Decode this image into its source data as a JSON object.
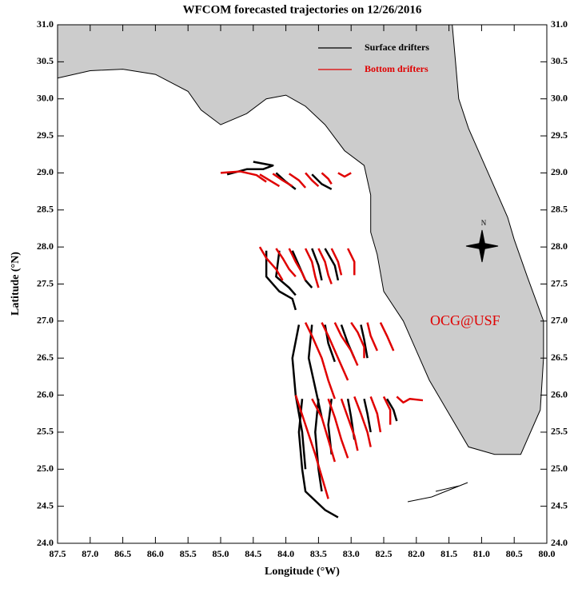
{
  "chart_data": {
    "type": "map",
    "title": "WFCOM forecasted trajectories on 12/26/2016",
    "xlabel": "Longitude (°W)",
    "ylabel": "Latitude (°N)",
    "xlim": [
      87.5,
      80.0
    ],
    "ylim": [
      24.0,
      31.0
    ],
    "xticks": [
      87.5,
      {
        "value": 87,
        "label": "87.0"
      },
      86.5,
      {
        "value": 86,
        "label": "86.0"
      },
      85.5,
      {
        "value": 85,
        "label": "85.0"
      },
      84.5,
      {
        "value": 84,
        "label": "84.0"
      },
      83.5,
      {
        "value": 83,
        "label": "83.0"
      },
      82.5,
      {
        "value": 82,
        "label": "82.0"
      },
      81.5,
      {
        "value": 81,
        "label": "81.0"
      },
      80.5,
      {
        "value": 80,
        "label": "80.0"
      }
    ],
    "yticks": [
      {
        "value": 24,
        "label": "24.0"
      },
      24.5,
      {
        "value": 25,
        "label": "25.0"
      },
      25.5,
      {
        "value": 26,
        "label": "26.0"
      },
      26.5,
      {
        "value": 27,
        "label": "27.0"
      },
      27.5,
      {
        "value": 28,
        "label": "28.0"
      },
      28.5,
      {
        "value": 29,
        "label": "29.0"
      },
      29.5,
      {
        "value": 30,
        "label": "30.0"
      },
      30.5,
      {
        "value": 31,
        "label": "31.0"
      }
    ],
    "legend": "top-right",
    "annotation": "OCG@USF",
    "compass_label": "N",
    "series": [
      {
        "name": "Surface drifters",
        "color": "#000000",
        "tracks": [
          {
            "x": [
              84.5,
              84.2,
              84.35,
              84.6,
              84.9
            ],
            "y": [
              29.15,
              29.1,
              29.05,
              29.05,
              28.98
            ]
          },
          {
            "x": [
              84.15,
              84.0,
              83.85
            ],
            "y": [
              29.0,
              28.88,
              28.78
            ]
          },
          {
            "x": [
              83.6,
              83.45,
              83.3
            ],
            "y": [
              28.98,
              28.85,
              28.78
            ]
          },
          {
            "x": [
              84.3,
              84.3,
              84.1,
              83.9,
              83.85
            ],
            "y": [
              27.95,
              27.6,
              27.4,
              27.3,
              27.15
            ]
          },
          {
            "x": [
              84.1,
              84.15,
              83.95,
              83.85
            ],
            "y": [
              27.95,
              27.6,
              27.45,
              27.35
            ]
          },
          {
            "x": [
              83.9,
              83.8,
              83.7,
              83.6
            ],
            "y": [
              27.95,
              27.75,
              27.55,
              27.45
            ]
          },
          {
            "x": [
              83.6,
              83.5,
              83.45
            ],
            "y": [
              27.98,
              27.75,
              27.55
            ]
          },
          {
            "x": [
              83.4,
              83.25,
              83.2
            ],
            "y": [
              27.98,
              27.75,
              27.55
            ]
          },
          {
            "x": [
              83.8,
              83.9,
              83.85,
              83.75,
              83.7
            ],
            "y": [
              26.95,
              26.5,
              26.0,
              25.5,
              25.0
            ]
          },
          {
            "x": [
              83.6,
              83.65,
              83.55,
              83.45
            ],
            "y": [
              26.95,
              26.5,
              26.1,
              25.7
            ]
          },
          {
            "x": [
              83.4,
              83.35,
              83.25
            ],
            "y": [
              26.95,
              26.7,
              26.45
            ]
          },
          {
            "x": [
              83.15,
              83.05,
              82.95
            ],
            "y": [
              26.95,
              26.7,
              26.5
            ]
          },
          {
            "x": [
              82.85,
              82.8,
              82.75
            ],
            "y": [
              26.95,
              26.75,
              26.5
            ]
          },
          {
            "x": [
              83.75,
              83.8,
              83.75,
              83.7,
              83.4,
              83.2
            ],
            "y": [
              25.95,
              25.5,
              25.0,
              24.7,
              24.45,
              24.35
            ]
          },
          {
            "x": [
              83.5,
              83.55,
              83.5,
              83.45
            ],
            "y": [
              25.95,
              25.5,
              25.0,
              24.7
            ]
          },
          {
            "x": [
              83.3,
              83.35,
              83.3
            ],
            "y": [
              25.95,
              25.6,
              25.2
            ]
          },
          {
            "x": [
              83.05,
              83.0,
              82.95
            ],
            "y": [
              25.95,
              25.7,
              25.4
            ]
          },
          {
            "x": [
              82.8,
              82.75,
              82.7
            ],
            "y": [
              25.95,
              25.75,
              25.5
            ]
          },
          {
            "x": [
              82.45,
              82.35,
              82.3
            ],
            "y": [
              25.95,
              25.8,
              25.65
            ]
          }
        ]
      },
      {
        "name": "Bottom drifters",
        "color": "#e00000",
        "tracks": [
          {
            "x": [
              85.0,
              84.7,
              84.45,
              84.3
            ],
            "y": [
              29.0,
              29.02,
              28.97,
              28.88
            ]
          },
          {
            "x": [
              84.4,
              84.25,
              84.1
            ],
            "y": [
              28.98,
              28.9,
              28.82
            ]
          },
          {
            "x": [
              84.2,
              84.05,
              83.9
            ],
            "y": [
              28.99,
              28.9,
              28.82
            ]
          },
          {
            "x": [
              83.95,
              83.8,
              83.7
            ],
            "y": [
              28.99,
              28.9,
              28.8
            ]
          },
          {
            "x": [
              83.7,
              83.6,
              83.5
            ],
            "y": [
              29.0,
              28.9,
              28.82
            ]
          },
          {
            "x": [
              83.45,
              83.35,
              83.3
            ],
            "y": [
              29.0,
              28.92,
              28.85
            ]
          },
          {
            "x": [
              83.2,
              83.1,
              83.0
            ],
            "y": [
              29.0,
              28.95,
              29.0
            ]
          },
          {
            "x": [
              84.4,
              84.3,
              84.15,
              84.05
            ],
            "y": [
              28.0,
              27.85,
              27.7,
              27.55
            ]
          },
          {
            "x": [
              84.15,
              84.05,
              83.95,
              83.85
            ],
            "y": [
              27.98,
              27.85,
              27.7,
              27.6
            ]
          },
          {
            "x": [
              83.95,
              83.85,
              83.75,
              83.7
            ],
            "y": [
              27.98,
              27.8,
              27.65,
              27.55
            ]
          },
          {
            "x": [
              83.7,
              83.6,
              83.55,
              83.5
            ],
            "y": [
              27.98,
              27.8,
              27.6,
              27.45
            ]
          },
          {
            "x": [
              83.5,
              83.4,
              83.35,
              83.3
            ],
            "y": [
              27.98,
              27.8,
              27.62,
              27.5
            ]
          },
          {
            "x": [
              83.3,
              83.2,
              83.15
            ],
            "y": [
              27.98,
              27.8,
              27.62
            ]
          },
          {
            "x": [
              83.05,
              82.95,
              82.95
            ],
            "y": [
              27.98,
              27.8,
              27.62
            ]
          },
          {
            "x": [
              83.7,
              83.6,
              83.45,
              83.35,
              83.25
            ],
            "y": [
              26.98,
              26.8,
              26.5,
              26.2,
              25.95
            ]
          },
          {
            "x": [
              83.45,
              83.35,
              83.2,
              83.05
            ],
            "y": [
              26.98,
              26.8,
              26.5,
              26.2
            ]
          },
          {
            "x": [
              83.25,
              83.15,
              83.0,
              82.9
            ],
            "y": [
              26.98,
              26.8,
              26.6,
              26.4
            ]
          },
          {
            "x": [
              83.0,
              82.9,
              82.8,
              82.8
            ],
            "y": [
              26.98,
              26.85,
              26.65,
              26.5
            ]
          },
          {
            "x": [
              82.75,
              82.7,
              82.6
            ],
            "y": [
              26.98,
              26.8,
              26.6
            ]
          },
          {
            "x": [
              82.55,
              82.45,
              82.35
            ],
            "y": [
              26.98,
              26.8,
              26.6
            ]
          },
          {
            "x": [
              83.85,
              83.7,
              83.55,
              83.45,
              83.35
            ],
            "y": [
              26.0,
              25.6,
              25.2,
              24.9,
              24.6
            ]
          },
          {
            "x": [
              83.6,
              83.45,
              83.35,
              83.25
            ],
            "y": [
              25.95,
              25.7,
              25.4,
              25.1
            ]
          },
          {
            "x": [
              83.35,
              83.25,
              83.15,
              83.05
            ],
            "y": [
              25.95,
              25.7,
              25.4,
              25.15
            ]
          },
          {
            "x": [
              83.15,
              83.05,
              82.95,
              82.9
            ],
            "y": [
              25.95,
              25.7,
              25.45,
              25.25
            ]
          },
          {
            "x": [
              82.95,
              82.85,
              82.75,
              82.7
            ],
            "y": [
              25.98,
              25.75,
              25.5,
              25.3
            ]
          },
          {
            "x": [
              82.7,
              82.6,
              82.55
            ],
            "y": [
              25.98,
              25.75,
              25.5
            ]
          },
          {
            "x": [
              82.5,
              82.4,
              82.4
            ],
            "y": [
              25.98,
              25.8,
              25.6
            ]
          },
          {
            "x": [
              82.3,
              82.2,
              82.1,
              81.9
            ],
            "y": [
              25.98,
              25.9,
              25.95,
              25.93
            ]
          }
        ]
      }
    ]
  }
}
